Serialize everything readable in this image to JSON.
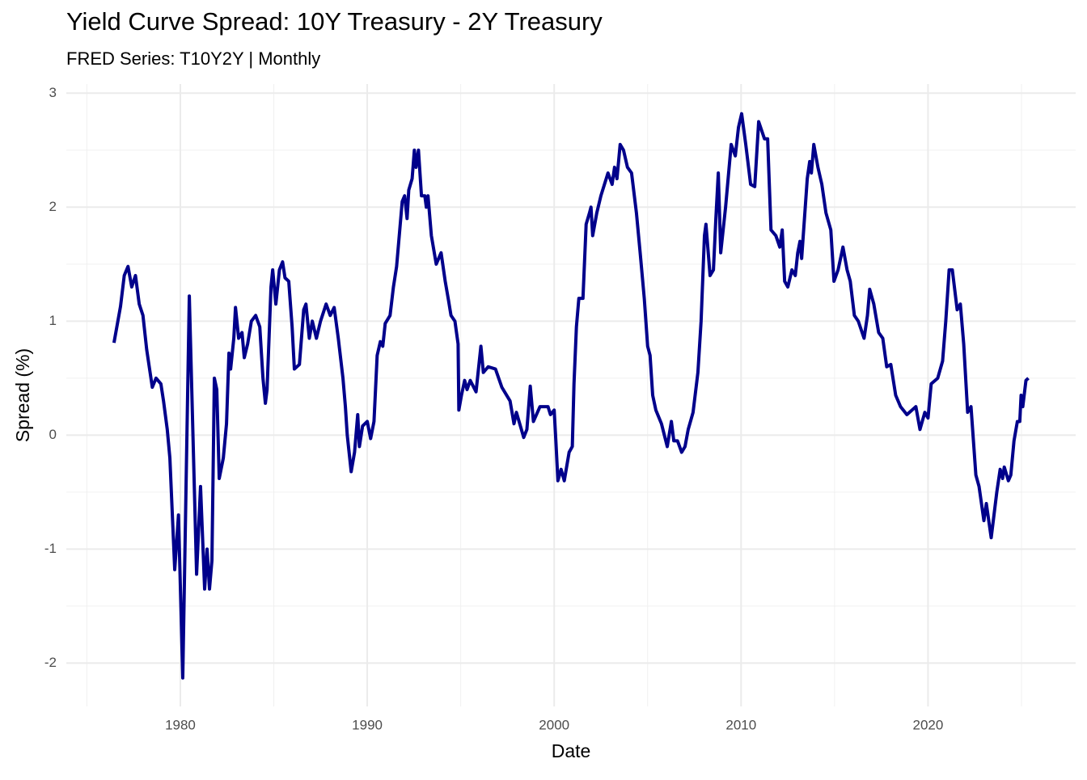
{
  "chart_data": {
    "type": "line",
    "title": "Yield Curve Spread: 10Y Treasury - 2Y Treasury",
    "subtitle": "FRED Series: T10Y2Y | Monthly",
    "x_label": "Date",
    "y_label": "Spread (%)",
    "xlim": [
      1973.9,
      2027.9
    ],
    "ylim": [
      -2.38,
      3.08
    ],
    "xticks": [
      1980,
      1990,
      2000,
      2010,
      2020
    ],
    "yticks": [
      -2,
      -1,
      0,
      1,
      2,
      3
    ],
    "x_minor_grid": [
      1975,
      1985,
      1995,
      2005,
      2015,
      2025
    ],
    "y_minor_grid": [
      -1.5,
      -0.5,
      0.5,
      1.5,
      2.5
    ],
    "grid": true,
    "series": [
      {
        "name": "T10Y2Y",
        "color": "#00008b",
        "x": [
          1976.45,
          1976.8,
          1977.0,
          1977.2,
          1977.4,
          1977.6,
          1977.8,
          1978.0,
          1978.2,
          1978.5,
          1978.7,
          1978.96,
          1979.1,
          1979.3,
          1979.44,
          1979.7,
          1979.9,
          1980.13,
          1980.48,
          1980.87,
          1981.08,
          1981.3,
          1981.43,
          1981.56,
          1981.69,
          1981.82,
          1981.95,
          1982.08,
          1982.3,
          1982.47,
          1982.6,
          1982.69,
          1982.86,
          1982.95,
          1983.12,
          1983.3,
          1983.42,
          1983.6,
          1983.8,
          1984.03,
          1984.25,
          1984.42,
          1984.55,
          1984.64,
          1984.85,
          1984.94,
          1985.11,
          1985.3,
          1985.47,
          1985.6,
          1985.8,
          1985.98,
          1986.1,
          1986.37,
          1986.6,
          1986.72,
          1986.9,
          1987.06,
          1987.28,
          1987.5,
          1987.8,
          1988.02,
          1988.23,
          1988.45,
          1988.7,
          1988.83,
          1988.93,
          1989.14,
          1989.32,
          1989.49,
          1989.58,
          1989.75,
          1990.0,
          1990.18,
          1990.36,
          1990.53,
          1990.7,
          1990.83,
          1990.96,
          1991.22,
          1991.4,
          1991.57,
          1991.87,
          1992.0,
          1992.13,
          1992.22,
          1992.4,
          1992.52,
          1992.61,
          1992.74,
          1992.9,
          1993.08,
          1993.16,
          1993.25,
          1993.43,
          1993.69,
          1993.95,
          1994.17,
          1994.35,
          1994.48,
          1994.69,
          1994.86,
          1994.9,
          1995.04,
          1995.21,
          1995.34,
          1995.51,
          1995.82,
          1996.08,
          1996.21,
          1996.47,
          1996.86,
          1997.2,
          1997.64,
          1997.85,
          1997.98,
          1998.37,
          1998.54,
          1998.72,
          1998.89,
          1999.24,
          1999.67,
          1999.8,
          2000.0,
          2000.09,
          2000.2,
          2000.37,
          2000.54,
          2000.8,
          2000.97,
          2001.06,
          2001.19,
          2001.32,
          2001.54,
          2001.71,
          2001.89,
          2001.97,
          2002.06,
          2002.28,
          2002.5,
          2002.88,
          2003.1,
          2003.23,
          2003.36,
          2003.53,
          2003.71,
          2003.92,
          2004.14,
          2004.4,
          2004.6,
          2004.82,
          2005.0,
          2005.13,
          2005.27,
          2005.44,
          2005.74,
          2006.05,
          2006.27,
          2006.4,
          2006.6,
          2006.82,
          2007.0,
          2007.17,
          2007.43,
          2007.69,
          2007.86,
          2008.04,
          2008.12,
          2008.34,
          2008.52,
          2008.65,
          2008.78,
          2008.91,
          2009.17,
          2009.47,
          2009.69,
          2009.86,
          2010.03,
          2010.25,
          2010.51,
          2010.73,
          2010.94,
          2011.25,
          2011.42,
          2011.6,
          2011.86,
          2012.07,
          2012.2,
          2012.33,
          2012.5,
          2012.72,
          2012.9,
          2013.03,
          2013.15,
          2013.24,
          2013.54,
          2013.67,
          2013.76,
          2013.89,
          2014.11,
          2014.32,
          2014.54,
          2014.8,
          2014.97,
          2015.19,
          2015.45,
          2015.67,
          2015.84,
          2016.06,
          2016.27,
          2016.58,
          2016.76,
          2016.88,
          2017.1,
          2017.36,
          2017.58,
          2017.79,
          2018.01,
          2018.27,
          2018.53,
          2018.87,
          2019.35,
          2019.57,
          2019.83,
          2020.0,
          2020.17,
          2020.52,
          2020.78,
          2020.95,
          2021.13,
          2021.3,
          2021.56,
          2021.73,
          2021.91,
          2022.12,
          2022.3,
          2022.56,
          2022.73,
          2022.99,
          2023.12,
          2023.38,
          2023.68,
          2023.86,
          2023.99,
          2024.08,
          2024.3,
          2024.43,
          2024.6,
          2024.78,
          2024.91,
          2024.98,
          2025.07,
          2025.24,
          2025.37
        ],
        "values": [
          0.81,
          1.13,
          1.4,
          1.48,
          1.3,
          1.4,
          1.15,
          1.05,
          0.75,
          0.42,
          0.5,
          0.45,
          0.3,
          0.05,
          -0.2,
          -1.18,
          -0.7,
          -2.13,
          1.22,
          -1.22,
          -0.45,
          -1.35,
          -1.0,
          -1.35,
          -1.1,
          0.5,
          0.4,
          -0.38,
          -0.2,
          0.1,
          0.72,
          0.58,
          0.85,
          1.12,
          0.85,
          0.9,
          0.68,
          0.8,
          1.0,
          1.05,
          0.95,
          0.5,
          0.28,
          0.4,
          1.3,
          1.45,
          1.15,
          1.45,
          1.52,
          1.38,
          1.35,
          0.95,
          0.58,
          0.62,
          1.1,
          1.15,
          0.85,
          1.0,
          0.85,
          1.0,
          1.15,
          1.05,
          1.12,
          0.85,
          0.5,
          0.25,
          0.0,
          -0.32,
          -0.15,
          0.18,
          -0.1,
          0.08,
          0.12,
          -0.03,
          0.12,
          0.7,
          0.82,
          0.78,
          0.98,
          1.05,
          1.3,
          1.48,
          2.05,
          2.1,
          1.9,
          2.15,
          2.25,
          2.5,
          2.35,
          2.5,
          2.1,
          2.1,
          2.0,
          2.1,
          1.75,
          1.5,
          1.6,
          1.35,
          1.18,
          1.05,
          1.0,
          0.8,
          0.22,
          0.35,
          0.48,
          0.4,
          0.48,
          0.38,
          0.78,
          0.55,
          0.6,
          0.58,
          0.42,
          0.3,
          0.1,
          0.2,
          -0.02,
          0.05,
          0.43,
          0.12,
          0.25,
          0.25,
          0.18,
          0.22,
          -0.05,
          -0.4,
          -0.3,
          -0.4,
          -0.15,
          -0.1,
          0.45,
          0.95,
          1.2,
          1.2,
          1.85,
          1.95,
          2.0,
          1.75,
          1.95,
          2.1,
          2.3,
          2.2,
          2.35,
          2.25,
          2.55,
          2.5,
          2.35,
          2.3,
          1.95,
          1.6,
          1.2,
          0.78,
          0.7,
          0.35,
          0.22,
          0.1,
          -0.1,
          0.12,
          -0.05,
          -0.05,
          -0.15,
          -0.1,
          0.05,
          0.2,
          0.55,
          1.0,
          1.75,
          1.85,
          1.4,
          1.45,
          1.9,
          2.3,
          1.6,
          2.0,
          2.55,
          2.45,
          2.7,
          2.82,
          2.55,
          2.2,
          2.18,
          2.75,
          2.6,
          2.6,
          1.8,
          1.75,
          1.65,
          1.8,
          1.35,
          1.3,
          1.45,
          1.4,
          1.6,
          1.7,
          1.55,
          2.25,
          2.4,
          2.3,
          2.55,
          2.35,
          2.2,
          1.95,
          1.8,
          1.35,
          1.45,
          1.65,
          1.45,
          1.35,
          1.05,
          1.0,
          0.85,
          1.05,
          1.28,
          1.15,
          0.9,
          0.85,
          0.6,
          0.62,
          0.35,
          0.25,
          0.18,
          0.25,
          0.05,
          0.2,
          0.15,
          0.45,
          0.5,
          0.65,
          1.0,
          1.45,
          1.45,
          1.1,
          1.15,
          0.8,
          0.2,
          0.25,
          -0.35,
          -0.45,
          -0.75,
          -0.6,
          -0.9,
          -0.5,
          -0.3,
          -0.38,
          -0.28,
          -0.4,
          -0.35,
          -0.05,
          0.12,
          0.12,
          0.35,
          0.25,
          0.48,
          0.5
        ]
      }
    ]
  }
}
